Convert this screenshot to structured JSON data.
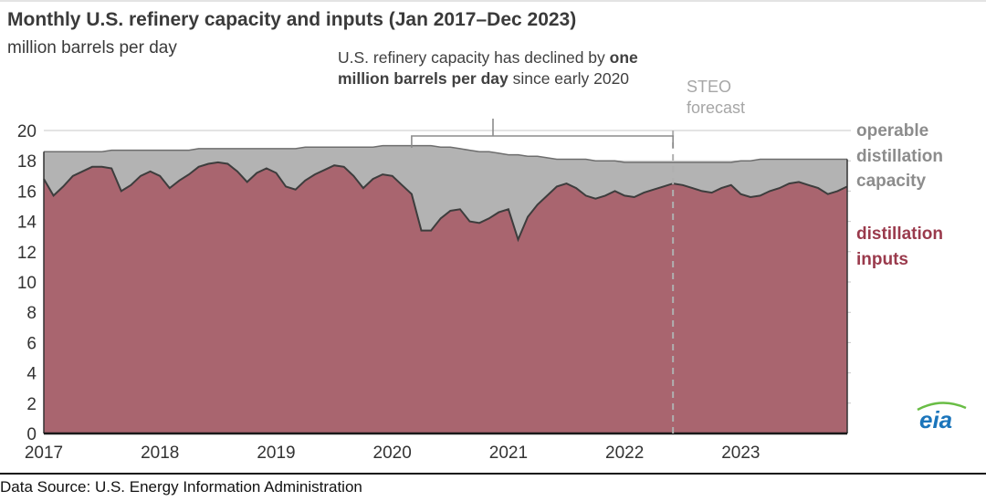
{
  "title": "Monthly U.S. refinery capacity and inputs (Jan 2017–Dec 2023)",
  "subtitle": "million barrels per day",
  "annotation": {
    "pre": "U.S. refinery capacity has declined by ",
    "bold": "one million barrels per day",
    "post": " since early 2020"
  },
  "forecast_label": "STEO forecast",
  "legend": {
    "capacity": "operable distillation capacity",
    "inputs": "distillation inputs"
  },
  "source": "Data Source: U.S. Energy Information Administration",
  "logo_text": "eia",
  "colors": {
    "capacity_fill": "#b3b3b3",
    "capacity_line": "#6e6e6e",
    "inputs_fill": "#a9656f",
    "inputs_line": "#3d3d3d",
    "grid": "#c9c9c9",
    "axis": "#1a1a1a",
    "dashed": "#b0b0b0",
    "bracket": "#8c8c8c",
    "tick_text": "#333333",
    "logo_blue": "#1b75bb",
    "logo_green": "#69bd45"
  },
  "chart_data": {
    "type": "area",
    "title": "Monthly U.S. refinery capacity and inputs (Jan 2017–Dec 2023)",
    "ylabel": "million barrels per day",
    "ylim": [
      0,
      20
    ],
    "yticks": [
      0,
      2,
      4,
      6,
      8,
      10,
      12,
      14,
      16,
      18,
      20
    ],
    "x_years": [
      "2017",
      "2018",
      "2019",
      "2020",
      "2021",
      "2022",
      "2023"
    ],
    "months_per_year": 12,
    "forecast_index": 65,
    "bracket": {
      "start_index": 38,
      "end_index": 65
    },
    "grid": true,
    "legend_position": "right",
    "series": [
      {
        "name": "operable distillation capacity",
        "values": [
          18.6,
          18.6,
          18.6,
          18.6,
          18.6,
          18.6,
          18.6,
          18.7,
          18.7,
          18.7,
          18.7,
          18.7,
          18.7,
          18.7,
          18.7,
          18.7,
          18.8,
          18.8,
          18.8,
          18.8,
          18.8,
          18.8,
          18.8,
          18.8,
          18.8,
          18.8,
          18.8,
          18.9,
          18.9,
          18.9,
          18.9,
          18.9,
          18.9,
          18.9,
          18.9,
          19.0,
          19.0,
          19.0,
          19.0,
          19.0,
          19.0,
          18.9,
          18.9,
          18.8,
          18.7,
          18.6,
          18.6,
          18.5,
          18.4,
          18.4,
          18.3,
          18.3,
          18.2,
          18.1,
          18.1,
          18.1,
          18.1,
          18.0,
          18.0,
          18.0,
          17.9,
          17.9,
          17.9,
          17.9,
          17.9,
          17.9,
          17.9,
          17.9,
          17.9,
          17.9,
          17.9,
          17.9,
          18.0,
          18.0,
          18.1,
          18.1,
          18.1,
          18.1,
          18.1,
          18.1,
          18.1,
          18.1,
          18.1,
          18.1
        ]
      },
      {
        "name": "distillation inputs",
        "values": [
          16.8,
          15.7,
          16.3,
          17.0,
          17.3,
          17.6,
          17.6,
          17.5,
          16.0,
          16.4,
          17.0,
          17.3,
          17.0,
          16.2,
          16.7,
          17.1,
          17.6,
          17.8,
          17.9,
          17.8,
          17.3,
          16.6,
          17.2,
          17.5,
          17.2,
          16.3,
          16.1,
          16.7,
          17.1,
          17.4,
          17.7,
          17.6,
          17.0,
          16.2,
          16.8,
          17.1,
          17.0,
          16.4,
          15.8,
          13.4,
          13.4,
          14.2,
          14.7,
          14.8,
          14.0,
          13.9,
          14.2,
          14.6,
          14.8,
          12.8,
          14.3,
          15.1,
          15.7,
          16.3,
          16.5,
          16.2,
          15.7,
          15.5,
          15.7,
          16.0,
          15.7,
          15.6,
          15.9,
          16.1,
          16.3,
          16.5,
          16.4,
          16.2,
          16.0,
          15.9,
          16.2,
          16.4,
          15.8,
          15.6,
          15.7,
          16.0,
          16.2,
          16.5,
          16.6,
          16.4,
          16.2,
          15.8,
          16.0,
          16.3
        ]
      }
    ]
  }
}
